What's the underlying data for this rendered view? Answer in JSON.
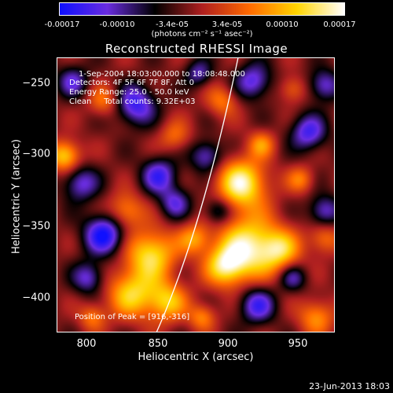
{
  "colorbar": {
    "tick_labels": [
      "-0.00017",
      "-0.00010",
      "-3.4e-05",
      "3.4e-05",
      "0.00010",
      "0.00017"
    ],
    "units": "(photons cm⁻² s⁻¹ asec⁻²)",
    "range": [
      -0.00017,
      0.00017
    ],
    "colors": [
      "#1010ff",
      "#6a2de0",
      "#000000",
      "#b02020",
      "#ff6a00",
      "#ffd500",
      "#ffffff"
    ]
  },
  "plot": {
    "title": "Reconstructed RHESSI Image",
    "xlabel": "Heliocentric X (arcsec)",
    "ylabel": "Heliocentric Y (arcsec)",
    "x_ticks": [
      "800",
      "850",
      "900",
      "950"
    ],
    "y_ticks": [
      "−250",
      "−300",
      "−350",
      "−400"
    ],
    "xlim": [
      780,
      975
    ],
    "ylim": [
      -425,
      -232
    ],
    "info_lines": [
      "1-Sep-2004 18:03:00.000 to 18:08:48.000",
      "Detectors: 4F 5F 6F 7F 8F, Att 0",
      "Energy Range: 25.0 - 50.0 keV",
      "Clean     Total counts: 9.32E+03"
    ],
    "peak_text": "Position of Peak = [916,-316]",
    "limb_color": "#ffffff"
  },
  "footer": {
    "date": "23-Jun-2013 18:03"
  }
}
